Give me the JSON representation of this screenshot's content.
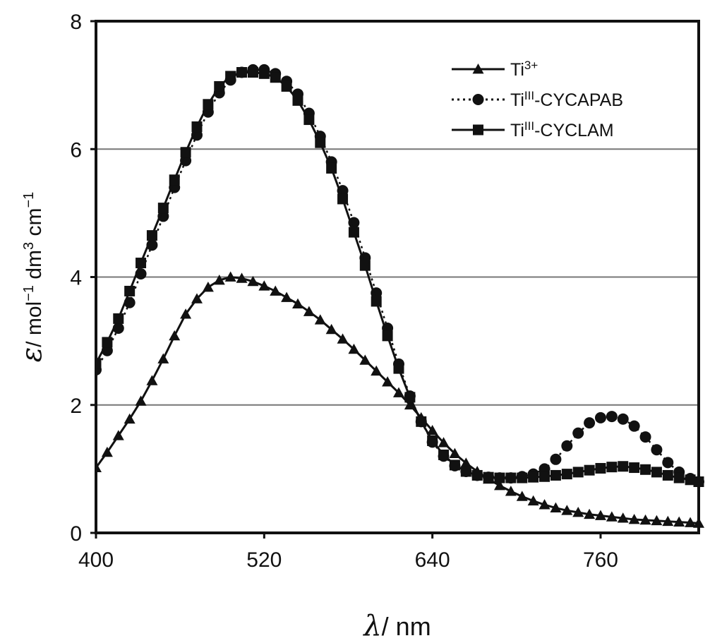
{
  "chart_data": {
    "type": "line",
    "title": "",
    "xlabel": {
      "symbol": "λ",
      "unit": "/ nm"
    },
    "ylabel": {
      "symbol": "ε",
      "unit": "/ mol",
      "sup1": "−1",
      "mid": " dm",
      "sup2": "3",
      "tail": " cm",
      "sup3": "−1"
    },
    "xlim": [
      400,
      830
    ],
    "ylim": [
      0,
      8
    ],
    "xticks": [
      "400",
      "520",
      "640",
      "760"
    ],
    "yticks": [
      "0",
      "2",
      "4",
      "6",
      "8"
    ],
    "grid": "horizontal",
    "legend_position": "top-right",
    "x": [
      400,
      408,
      416,
      424,
      432,
      440,
      448,
      456,
      464,
      472,
      480,
      488,
      496,
      504,
      512,
      520,
      528,
      536,
      544,
      552,
      560,
      568,
      576,
      584,
      592,
      600,
      608,
      616,
      624,
      632,
      640,
      648,
      656,
      664,
      672,
      680,
      688,
      696,
      704,
      712,
      720,
      728,
      736,
      744,
      752,
      760,
      768,
      776,
      784,
      792,
      800,
      808,
      816,
      824,
      830
    ],
    "series": [
      {
        "name": "Ti",
        "sup": "3+",
        "suffix": "",
        "marker": "triangle",
        "line": "solid",
        "values": [
          1.02,
          1.26,
          1.52,
          1.78,
          2.06,
          2.38,
          2.72,
          3.08,
          3.42,
          3.66,
          3.84,
          3.95,
          4.0,
          3.98,
          3.93,
          3.86,
          3.78,
          3.68,
          3.58,
          3.46,
          3.33,
          3.18,
          3.03,
          2.87,
          2.7,
          2.53,
          2.36,
          2.19,
          2.0,
          1.8,
          1.6,
          1.41,
          1.24,
          1.09,
          0.96,
          0.84,
          0.74,
          0.65,
          0.57,
          0.5,
          0.44,
          0.39,
          0.35,
          0.32,
          0.29,
          0.27,
          0.25,
          0.23,
          0.21,
          0.2,
          0.19,
          0.18,
          0.17,
          0.16,
          0.15
        ]
      },
      {
        "name": "Ti",
        "sup": "III",
        "suffix": "-CYCAPAB",
        "marker": "circle",
        "line": "dotted",
        "values": [
          2.55,
          2.85,
          3.2,
          3.6,
          4.05,
          4.5,
          4.95,
          5.4,
          5.82,
          6.22,
          6.58,
          6.88,
          7.08,
          7.2,
          7.24,
          7.24,
          7.18,
          7.06,
          6.86,
          6.56,
          6.2,
          5.8,
          5.35,
          4.85,
          4.3,
          3.75,
          3.2,
          2.64,
          2.14,
          1.74,
          1.42,
          1.2,
          1.05,
          0.96,
          0.9,
          0.87,
          0.86,
          0.86,
          0.88,
          0.92,
          1.0,
          1.15,
          1.36,
          1.56,
          1.72,
          1.8,
          1.82,
          1.78,
          1.67,
          1.5,
          1.3,
          1.1,
          0.95,
          0.85,
          0.8
        ]
      },
      {
        "name": "Ti",
        "sup": "III",
        "suffix": "-CYCLAM",
        "marker": "square",
        "line": "solid",
        "values": [
          2.65,
          2.98,
          3.35,
          3.78,
          4.22,
          4.65,
          5.08,
          5.52,
          5.95,
          6.35,
          6.7,
          6.98,
          7.14,
          7.2,
          7.2,
          7.18,
          7.12,
          6.98,
          6.76,
          6.46,
          6.1,
          5.7,
          5.22,
          4.7,
          4.18,
          3.62,
          3.08,
          2.57,
          2.12,
          1.74,
          1.44,
          1.22,
          1.06,
          0.96,
          0.9,
          0.87,
          0.86,
          0.86,
          0.86,
          0.87,
          0.88,
          0.9,
          0.92,
          0.95,
          0.98,
          1.01,
          1.03,
          1.04,
          1.02,
          0.99,
          0.95,
          0.9,
          0.86,
          0.83,
          0.8
        ]
      }
    ]
  }
}
